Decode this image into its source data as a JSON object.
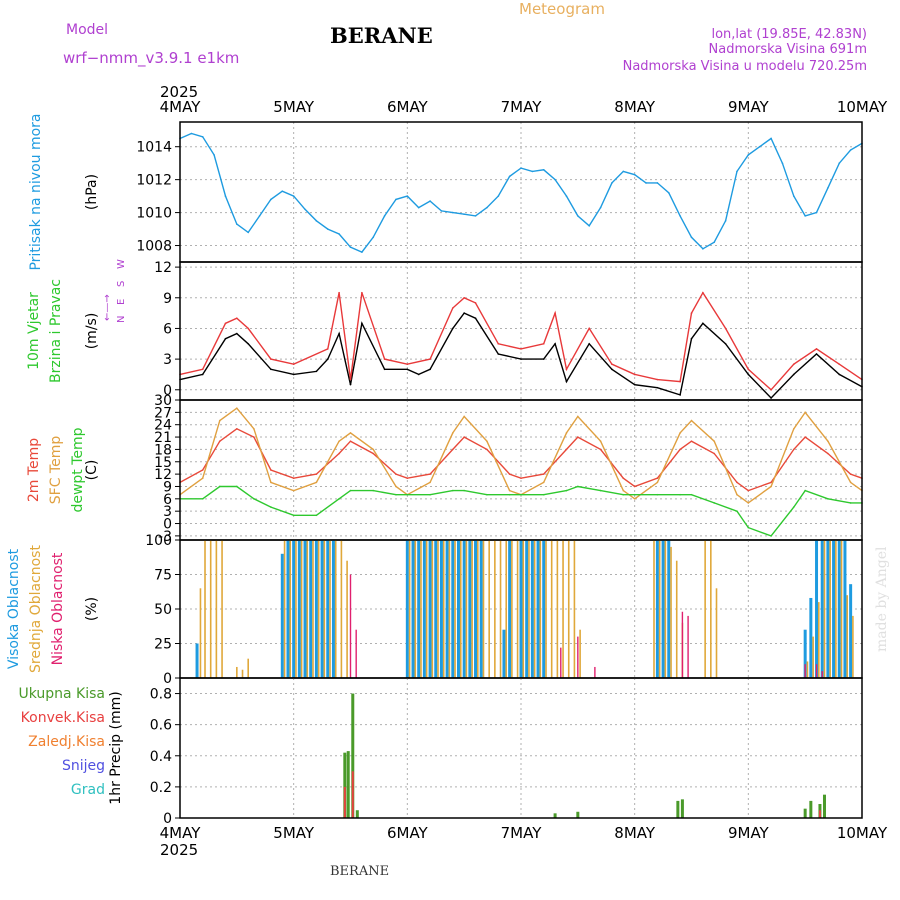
{
  "header": {
    "model_label": "Model",
    "model_name": "wrf−nmm_v3.9.1  e1km",
    "station": "BERANE",
    "product": "Meteogram",
    "coords": "lon,lat (19.85E, 42.83N)",
    "elevation": "Nadmorska Visina 691m",
    "model_elevation": "Nadmorska Visina u modelu 720.25m",
    "year_top": "2025",
    "year_bottom": "2025",
    "footer_station": "BERANE",
    "watermark": "made by Angel"
  },
  "x_axis": {
    "range_days": [
      0,
      6
    ],
    "ticks": [
      "4MAY",
      "5MAY",
      "6MAY",
      "7MAY",
      "8MAY",
      "9MAY",
      "10MAY"
    ]
  },
  "colors": {
    "pressure": "#1e9be0",
    "wind_speed": "#000000",
    "wind_gust": "#e8393a",
    "t2m": "#e8493a",
    "tsfc": "#e0a040",
    "dewpoint": "#2ec82e",
    "cloud_high": "#1e9be0",
    "cloud_mid": "#e0a83a",
    "cloud_low": "#e0206e",
    "precip_total": "#4a9a2a",
    "precip_conv": "#e84040",
    "precip_frz": "#f08030",
    "snow": "#5050e0",
    "hail": "#30c0c0",
    "label_purple": "#b040d0",
    "label_orange": "#e8b060",
    "grid": "#b0b0b0"
  },
  "chart_data": [
    {
      "type": "line",
      "panel": "pressure",
      "ylabel": "(hPa)",
      "side_labels": [
        "Pritisak na nivou mora"
      ],
      "ylim": [
        1007,
        1015.5
      ],
      "yticks": [
        1008,
        1010,
        1012,
        1014
      ],
      "grid": true,
      "series": [
        {
          "x": [
            0,
            0.1,
            0.2,
            0.3,
            0.4,
            0.5,
            0.6,
            0.7,
            0.8,
            0.9,
            1.0,
            1.1,
            1.2,
            1.3,
            1.4,
            1.5,
            1.6,
            1.7,
            1.8,
            1.9,
            2.0,
            2.1,
            2.2,
            2.3,
            2.4,
            2.5,
            2.6,
            2.7,
            2.8,
            2.9,
            3.0,
            3.1,
            3.2,
            3.3,
            3.4,
            3.5,
            3.6,
            3.7,
            3.8,
            3.9,
            4.0,
            4.1,
            4.2,
            4.3,
            4.4,
            4.5,
            4.6,
            4.7,
            4.8,
            4.9,
            5.0,
            5.1,
            5.2,
            5.3,
            5.4,
            5.5,
            5.6,
            5.7,
            5.8,
            5.9,
            6.0
          ],
          "y": [
            1014.5,
            1014.8,
            1014.6,
            1013.5,
            1011.0,
            1009.3,
            1008.8,
            1009.8,
            1010.8,
            1011.3,
            1011.0,
            1010.2,
            1009.5,
            1009.0,
            1008.7,
            1007.9,
            1007.6,
            1008.5,
            1009.8,
            1010.8,
            1011.0,
            1010.3,
            1010.7,
            1010.1,
            1010.0,
            1009.9,
            1009.8,
            1010.3,
            1011.0,
            1012.2,
            1012.7,
            1012.5,
            1012.6,
            1012.0,
            1011.0,
            1009.8,
            1009.2,
            1010.3,
            1011.8,
            1012.5,
            1012.3,
            1011.8,
            1011.8,
            1011.2,
            1009.8,
            1008.5,
            1007.8,
            1008.2,
            1009.5,
            1012.5,
            1013.5,
            1014.0,
            1014.5,
            1013.0,
            1011.0,
            1009.8,
            1010.0,
            1011.5,
            1013.0,
            1013.8,
            1014.2
          ]
        }
      ]
    },
    {
      "type": "line",
      "panel": "wind",
      "ylabel": "(m/s)",
      "side_labels": [
        "10m Vjetar",
        "Brzina i Pravac"
      ],
      "compass": [
        "N",
        "E",
        "S",
        "W"
      ],
      "ylim": [
        -1,
        12.5
      ],
      "yticks": [
        0,
        3,
        6,
        9,
        12
      ],
      "grid": true,
      "series": [
        {
          "name": "speed",
          "x": [
            0,
            0.2,
            0.4,
            0.5,
            0.6,
            0.8,
            1.0,
            1.2,
            1.3,
            1.4,
            1.5,
            1.6,
            1.8,
            2.0,
            2.1,
            2.2,
            2.4,
            2.5,
            2.6,
            2.8,
            3.0,
            3.2,
            3.3,
            3.4,
            3.6,
            3.8,
            4.0,
            4.2,
            4.4,
            4.5,
            4.6,
            4.8,
            5.0,
            5.2,
            5.4,
            5.6,
            5.8,
            6.0
          ],
          "y": [
            1.0,
            1.5,
            5.0,
            5.5,
            4.5,
            2.0,
            1.5,
            1.8,
            3.0,
            5.5,
            0.5,
            6.5,
            2.0,
            2.0,
            1.5,
            2.0,
            6.0,
            7.5,
            7.0,
            3.5,
            3.0,
            3.0,
            4.5,
            0.8,
            4.5,
            2.0,
            0.5,
            0.2,
            -0.5,
            5.0,
            6.5,
            4.5,
            1.5,
            -0.8,
            1.5,
            3.5,
            1.5,
            0.3
          ]
        },
        {
          "name": "gust",
          "x": [
            0,
            0.2,
            0.4,
            0.5,
            0.6,
            0.8,
            1.0,
            1.3,
            1.4,
            1.5,
            1.6,
            1.8,
            2.0,
            2.2,
            2.4,
            2.5,
            2.6,
            2.8,
            3.0,
            3.2,
            3.3,
            3.4,
            3.6,
            3.8,
            4.0,
            4.2,
            4.4,
            4.5,
            4.6,
            4.8,
            5.0,
            5.2,
            5.4,
            5.6,
            5.8,
            6.0
          ],
          "y": [
            1.5,
            2.0,
            6.5,
            7.0,
            6.0,
            3.0,
            2.5,
            4.0,
            9.5,
            1.0,
            9.5,
            3.0,
            2.5,
            3.0,
            8.0,
            9.0,
            8.5,
            4.5,
            4.0,
            4.5,
            7.5,
            2.0,
            6.0,
            2.5,
            1.5,
            1.0,
            0.8,
            7.5,
            9.5,
            6.0,
            2.0,
            0.0,
            2.5,
            4.0,
            2.5,
            1.0
          ]
        }
      ]
    },
    {
      "type": "line",
      "panel": "temperature",
      "ylabel": "(C)",
      "side_labels": [
        "2m Temp",
        "SFC Temp",
        "dewpt Temp"
      ],
      "ylim": [
        -4,
        30
      ],
      "yticks": [
        -3,
        0,
        3,
        6,
        9,
        12,
        15,
        18,
        21,
        24,
        27,
        30
      ],
      "grid": true,
      "series": [
        {
          "name": "2m Temp",
          "x": [
            0,
            0.2,
            0.35,
            0.5,
            0.65,
            0.8,
            1.0,
            1.2,
            1.4,
            1.5,
            1.7,
            1.9,
            2.0,
            2.2,
            2.4,
            2.5,
            2.7,
            2.9,
            3.0,
            3.2,
            3.4,
            3.5,
            3.7,
            3.9,
            4.0,
            4.2,
            4.4,
            4.5,
            4.7,
            4.9,
            5.0,
            5.2,
            5.4,
            5.5,
            5.7,
            5.9,
            6.0
          ],
          "y": [
            10,
            13,
            20,
            23,
            21,
            13,
            11,
            12,
            17,
            20,
            17,
            12,
            11,
            12,
            18,
            21,
            18,
            12,
            11,
            12,
            18,
            21,
            18,
            11,
            9,
            11,
            18,
            20,
            17,
            10,
            8,
            10,
            18,
            21,
            17,
            12,
            11
          ]
        },
        {
          "name": "SFC Temp",
          "x": [
            0,
            0.2,
            0.35,
            0.5,
            0.65,
            0.8,
            1.0,
            1.2,
            1.4,
            1.5,
            1.7,
            1.9,
            2.0,
            2.2,
            2.4,
            2.5,
            2.7,
            2.9,
            3.0,
            3.2,
            3.4,
            3.5,
            3.7,
            3.9,
            4.0,
            4.2,
            4.4,
            4.5,
            4.7,
            4.9,
            5.0,
            5.2,
            5.4,
            5.5,
            5.7,
            5.9,
            6.0
          ],
          "y": [
            7,
            11,
            25,
            28,
            23,
            10,
            8,
            10,
            20,
            22,
            18,
            9,
            7,
            10,
            22,
            26,
            20,
            8,
            7,
            10,
            22,
            26,
            20,
            8,
            6,
            10,
            22,
            25,
            20,
            7,
            5,
            9,
            23,
            27,
            20,
            10,
            8
          ]
        },
        {
          "name": "dewpt Temp",
          "x": [
            0,
            0.2,
            0.35,
            0.5,
            0.65,
            0.8,
            1.0,
            1.2,
            1.4,
            1.5,
            1.7,
            1.9,
            2.0,
            2.2,
            2.4,
            2.5,
            2.7,
            2.9,
            3.0,
            3.2,
            3.4,
            3.5,
            3.7,
            3.9,
            4.0,
            4.2,
            4.4,
            4.5,
            4.7,
            4.9,
            5.0,
            5.2,
            5.4,
            5.5,
            5.7,
            5.9,
            6.0
          ],
          "y": [
            6,
            6,
            9,
            9,
            6,
            4,
            2,
            2,
            6,
            8,
            8,
            7,
            7,
            7,
            8,
            8,
            7,
            7,
            7,
            7,
            8,
            9,
            8,
            7,
            7,
            7,
            7,
            7,
            5,
            3,
            -1,
            -3,
            4,
            8,
            6,
            5,
            5
          ]
        }
      ]
    },
    {
      "type": "bar",
      "panel": "cloud",
      "ylabel": "(%)",
      "side_labels": [
        "Visoka Oblacnost",
        "Srednja Oblacnost",
        "Niska Oblacnost"
      ],
      "ylim": [
        0,
        100
      ],
      "yticks": [
        0,
        25,
        50,
        75,
        100
      ],
      "grid": true,
      "series": [
        {
          "name": "Visoka Oblacnost",
          "x": [
            0.15,
            0.9,
            0.95,
            1.0,
            1.05,
            1.1,
            1.15,
            1.2,
            1.25,
            1.3,
            1.35,
            2.0,
            2.05,
            2.1,
            2.15,
            2.2,
            2.25,
            2.3,
            2.35,
            2.4,
            2.45,
            2.5,
            2.55,
            2.6,
            2.65,
            2.85,
            2.9,
            3.0,
            3.05,
            3.1,
            3.15,
            3.2,
            4.2,
            4.25,
            4.3,
            5.5,
            5.55,
            5.6,
            5.65,
            5.7,
            5.75,
            5.8,
            5.85,
            5.9
          ],
          "y": [
            25,
            90,
            100,
            100,
            100,
            100,
            100,
            100,
            100,
            100,
            100,
            100,
            100,
            100,
            100,
            100,
            100,
            100,
            100,
            100,
            100,
            100,
            100,
            100,
            100,
            35,
            100,
            100,
            100,
            100,
            100,
            100,
            100,
            100,
            100,
            35,
            58,
            100,
            100,
            100,
            100,
            100,
            100,
            68
          ]
        },
        {
          "name": "Srednja Oblacnost",
          "x": [
            0.18,
            0.22,
            0.27,
            0.32,
            0.37,
            0.5,
            0.55,
            0.6,
            0.92,
            0.97,
            1.02,
            1.07,
            1.12,
            1.17,
            1.22,
            1.27,
            1.32,
            1.37,
            1.42,
            1.47,
            2.02,
            2.07,
            2.12,
            2.17,
            2.22,
            2.27,
            2.32,
            2.37,
            2.42,
            2.47,
            2.52,
            2.57,
            2.62,
            2.67,
            2.72,
            2.77,
            2.82,
            2.87,
            2.92,
            2.97,
            3.02,
            3.07,
            3.12,
            3.17,
            3.22,
            3.27,
            3.32,
            3.37,
            3.42,
            3.47,
            3.52,
            4.17,
            4.22,
            4.27,
            4.32,
            4.37,
            4.42,
            4.62,
            4.67,
            4.72,
            5.52,
            5.57,
            5.62,
            5.67,
            5.72,
            5.77,
            5.82,
            5.87,
            5.92
          ],
          "y": [
            65,
            100,
            100,
            100,
            100,
            8,
            6,
            14,
            100,
            100,
            100,
            100,
            100,
            100,
            100,
            100,
            100,
            100,
            100,
            85,
            100,
            100,
            100,
            100,
            100,
            100,
            100,
            100,
            100,
            100,
            100,
            100,
            100,
            100,
            100,
            100,
            100,
            100,
            100,
            100,
            100,
            100,
            100,
            100,
            100,
            100,
            100,
            100,
            100,
            100,
            35,
            100,
            100,
            100,
            95,
            85,
            40,
            100,
            100,
            65,
            12,
            30,
            55,
            100,
            100,
            100,
            100,
            60,
            45
          ]
        },
        {
          "name": "Niska Oblacnost",
          "x": [
            1.5,
            1.55,
            3.35,
            3.5,
            3.65,
            4.42,
            4.47,
            5.5,
            5.6,
            5.65
          ],
          "y": [
            75,
            35,
            22,
            30,
            8,
            48,
            45,
            10,
            10,
            5
          ]
        }
      ]
    },
    {
      "type": "bar",
      "panel": "precip",
      "ylabel": "1hr Precip (mm)",
      "side_labels": [
        "Ukupna Kisa",
        "Konvek.Kisa",
        "Zaledj.Kisa",
        "Snijeg",
        "Grad"
      ],
      "ylim": [
        0,
        0.9
      ],
      "yticks": [
        0,
        0.2,
        0.4,
        0.6,
        0.8
      ],
      "grid": true,
      "series": [
        {
          "name": "Ukupna Kisa",
          "x": [
            1.45,
            1.48,
            1.52,
            1.56,
            3.3,
            3.5,
            4.38,
            4.42,
            5.5,
            5.55,
            5.63,
            5.67
          ],
          "y": [
            0.42,
            0.43,
            0.8,
            0.05,
            0.03,
            0.04,
            0.11,
            0.12,
            0.06,
            0.11,
            0.09,
            0.15
          ]
        },
        {
          "name": "Konvek.Kisa",
          "x": [
            1.45,
            1.52,
            5.63
          ],
          "y": [
            0.2,
            0.3,
            0.05
          ]
        }
      ]
    }
  ]
}
